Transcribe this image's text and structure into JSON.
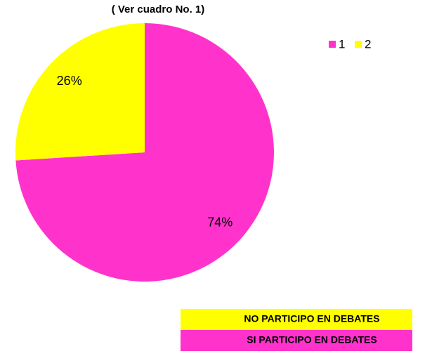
{
  "chart_data": {
    "type": "pie",
    "title": "( Ver cuadro No. 1)",
    "categories": [
      "1",
      "2"
    ],
    "values": [
      74,
      26
    ],
    "value_labels": [
      "74%",
      "26%"
    ],
    "colors": [
      "#ff33cc",
      "#ffff00"
    ],
    "legend": "top-right"
  },
  "legend_table": [
    {
      "label": "NO PARTICIPO EN DEBATES",
      "color": "#ffff00"
    },
    {
      "label": "SI PARTICIPO EN DEBATES",
      "color": "#ff33cc"
    }
  ]
}
